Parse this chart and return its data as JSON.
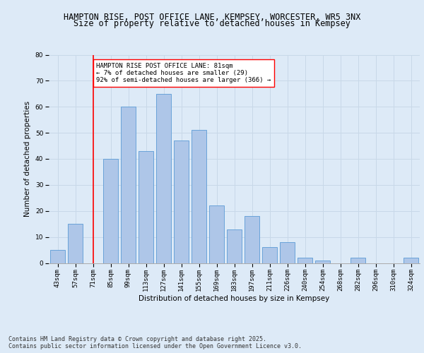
{
  "title_line1": "HAMPTON RISE, POST OFFICE LANE, KEMPSEY, WORCESTER, WR5 3NX",
  "title_line2": "Size of property relative to detached houses in Kempsey",
  "xlabel": "Distribution of detached houses by size in Kempsey",
  "ylabel": "Number of detached properties",
  "categories": [
    "43sqm",
    "57sqm",
    "71sqm",
    "85sqm",
    "99sqm",
    "113sqm",
    "127sqm",
    "141sqm",
    "155sqm",
    "169sqm",
    "183sqm",
    "197sqm",
    "211sqm",
    "226sqm",
    "240sqm",
    "254sqm",
    "268sqm",
    "282sqm",
    "296sqm",
    "310sqm",
    "324sqm"
  ],
  "values": [
    5,
    15,
    0,
    40,
    60,
    43,
    65,
    47,
    51,
    22,
    13,
    18,
    6,
    8,
    2,
    1,
    0,
    2,
    0,
    0,
    2
  ],
  "bar_color": "#aec6e8",
  "bar_edge_color": "#5b9bd5",
  "grid_color": "#c8d8e8",
  "background_color": "#ddeaf7",
  "vline_color": "red",
  "vline_position": 2.0,
  "annotation_text": "HAMPTON RISE POST OFFICE LANE: 81sqm\n← 7% of detached houses are smaller (29)\n92% of semi-detached houses are larger (366) →",
  "annotation_box_color": "white",
  "annotation_box_edge": "red",
  "ylim": [
    0,
    80
  ],
  "yticks": [
    0,
    10,
    20,
    30,
    40,
    50,
    60,
    70,
    80
  ],
  "footnote": "Contains HM Land Registry data © Crown copyright and database right 2025.\nContains public sector information licensed under the Open Government Licence v3.0.",
  "title_fontsize": 8.5,
  "subtitle_fontsize": 8.5,
  "axis_label_fontsize": 7.5,
  "tick_fontsize": 6.5,
  "annotation_fontsize": 6.5,
  "footnote_fontsize": 6.0
}
